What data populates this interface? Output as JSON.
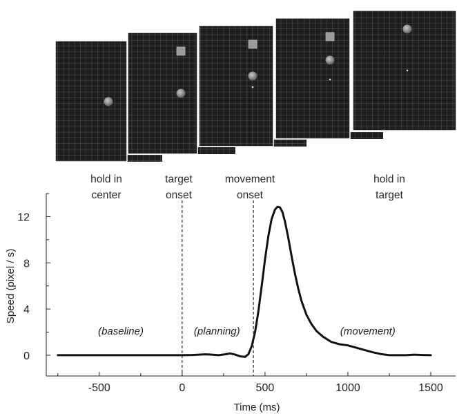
{
  "task_frames": [
    {
      "cursor": true,
      "target": false,
      "center_dot": false
    },
    {
      "cursor": true,
      "target": true,
      "center_dot": false
    },
    {
      "cursor": true,
      "target": true,
      "center_dot": true
    },
    {
      "cursor": true,
      "target": true,
      "center_dot": true
    },
    {
      "cursor": true,
      "target": false,
      "center_dot": true
    }
  ],
  "phase_labels": [
    {
      "line1": "hold in",
      "line2": "center"
    },
    {
      "line1": "target",
      "line2": "onset"
    },
    {
      "line1": "movement",
      "line2": "onset"
    },
    {
      "line1": "hold in",
      "line2": "target"
    }
  ],
  "colors": {
    "frame_bg": "#1e1e1e",
    "grid_line": "#6a6a6a",
    "frame_border": "#ffffff",
    "trace": "#111111"
  },
  "chart_data": {
    "type": "line",
    "xlabel": "Time (ms)",
    "ylabel": "Speed  (pixel / s)",
    "xlim": [
      -820,
      1650
    ],
    "ylim": [
      -1.8,
      14
    ],
    "xticks": [
      -500,
      0,
      500,
      1000,
      1500
    ],
    "yticks": [
      0,
      4,
      8,
      12
    ],
    "vertical_markers": [
      {
        "x": 0,
        "style": "dashed"
      },
      {
        "x": 430,
        "style": "dashed"
      }
    ],
    "epoch_labels": [
      {
        "text": "(baseline)",
        "x": -370,
        "y": 1.8
      },
      {
        "text": "(planning)",
        "x": 210,
        "y": 1.8
      },
      {
        "text": "(movement)",
        "x": 1120,
        "y": 1.8
      }
    ],
    "series": [
      {
        "x": [
          -750,
          -600,
          -400,
          -200,
          0,
          60,
          100,
          140,
          180,
          220,
          260,
          290,
          320,
          350,
          380,
          400,
          420,
          440,
          460,
          480,
          500,
          520,
          540,
          560,
          575,
          590,
          605,
          620,
          640,
          660,
          680,
          700,
          720,
          750,
          780,
          810,
          850,
          900,
          950,
          1000,
          1050,
          1100,
          1150,
          1200,
          1250,
          1300,
          1350,
          1400,
          1450,
          1500
        ],
        "y": [
          0,
          0,
          0,
          0,
          0,
          0.02,
          0.05,
          0.08,
          0.05,
          0.0,
          0.08,
          0.15,
          0.05,
          -0.1,
          -0.15,
          0.1,
          0.8,
          2.0,
          3.8,
          6.0,
          8.3,
          10.3,
          11.8,
          12.6,
          12.85,
          12.8,
          12.4,
          11.6,
          10.2,
          8.6,
          7.1,
          5.8,
          4.7,
          3.5,
          2.7,
          2.1,
          1.6,
          1.15,
          0.95,
          0.85,
          0.65,
          0.45,
          0.25,
          0.1,
          0.0,
          0.0,
          0.0,
          0.05,
          0.02,
          0.0
        ]
      }
    ]
  }
}
